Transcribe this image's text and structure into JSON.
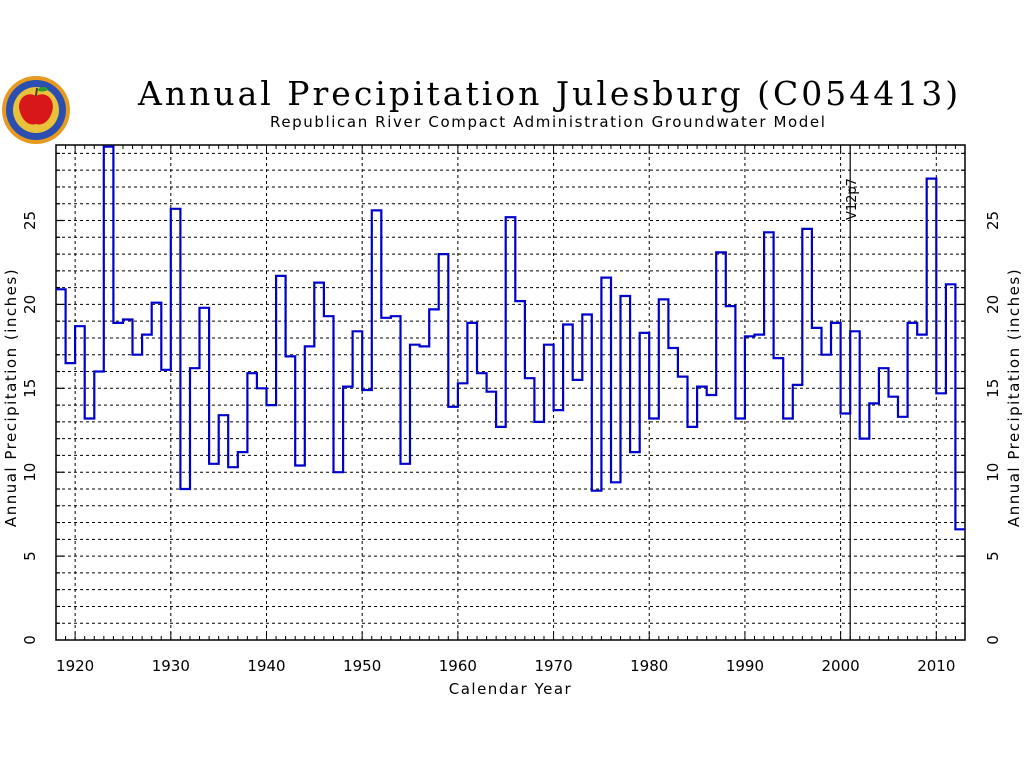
{
  "logo": {
    "icon": "agency-seal-apple-icon"
  },
  "chart_data": {
    "type": "line",
    "step": true,
    "title": "Annual Precipitation Julesburg (C054413)",
    "subtitle": "Republican River Compact Administration Groundwater Model",
    "xlabel": "Calendar Year",
    "ylabel": "Annual Precipitation (inches)",
    "ylabel_right": "Annual Precipitation (inches)",
    "xlim": [
      1918,
      2013
    ],
    "ylim": [
      0,
      29.5
    ],
    "xticks": [
      1920,
      1930,
      1940,
      1950,
      1960,
      1970,
      1980,
      1990,
      2000,
      2010
    ],
    "xtick_labels": [
      "1920",
      "1930",
      "1940",
      "1950",
      "1960",
      "1970",
      "1980",
      "1990",
      "2000",
      "2010"
    ],
    "yticks": [
      0,
      5,
      10,
      15,
      20,
      25
    ],
    "ytick_labels": [
      "0",
      "5",
      "10",
      "15",
      "20",
      "25"
    ],
    "grid": true,
    "series_color": "#0000cc",
    "annotation": {
      "x": 2001,
      "label": "V12p7"
    },
    "series": [
      {
        "x": [
          1918,
          1919,
          1920,
          1921,
          1922,
          1923,
          1924,
          1925,
          1926,
          1927,
          1928,
          1929,
          1930,
          1931,
          1932,
          1933,
          1934,
          1935,
          1936,
          1937,
          1938,
          1939,
          1940,
          1941,
          1942,
          1943,
          1944,
          1945,
          1946,
          1947,
          1948,
          1949,
          1950,
          1951,
          1952,
          1953,
          1954,
          1955,
          1956,
          1957,
          1958,
          1959,
          1960,
          1961,
          1962,
          1963,
          1964,
          1965,
          1966,
          1967,
          1968,
          1969,
          1970,
          1971,
          1972,
          1973,
          1974,
          1975,
          1976,
          1977,
          1978,
          1979,
          1980,
          1981,
          1982,
          1983,
          1984,
          1985,
          1986,
          1987,
          1988,
          1989,
          1990,
          1991,
          1992,
          1993,
          1994,
          1995,
          1996,
          1997,
          1998,
          1999,
          2000,
          2001,
          2002,
          2003,
          2004,
          2005,
          2006,
          2007,
          2008,
          2009,
          2010,
          2011,
          2012
        ],
        "values": [
          20.9,
          16.5,
          18.7,
          13.2,
          16.0,
          29.4,
          18.9,
          19.1,
          17.0,
          18.2,
          20.1,
          16.1,
          25.7,
          9.0,
          16.2,
          19.8,
          10.5,
          13.4,
          10.3,
          11.2,
          15.9,
          15.0,
          14.0,
          21.7,
          16.9,
          10.4,
          17.5,
          21.3,
          19.3,
          10.0,
          15.1,
          18.4,
          14.9,
          25.6,
          19.2,
          19.3,
          10.5,
          17.6,
          17.5,
          19.7,
          23.0,
          13.9,
          15.3,
          18.9,
          15.9,
          14.8,
          12.7,
          25.2,
          20.2,
          15.6,
          13.0,
          17.6,
          13.7,
          18.8,
          15.5,
          19.4,
          8.9,
          21.6,
          9.4,
          20.5,
          11.2,
          18.3,
          13.2,
          20.3,
          17.4,
          15.7,
          12.7,
          15.1,
          14.6,
          23.1,
          19.9,
          13.2,
          18.1,
          18.2,
          24.3,
          16.8,
          13.2,
          15.2,
          24.5,
          18.6,
          17.0,
          18.9,
          13.5,
          18.4,
          12.0,
          14.1,
          16.2,
          14.5,
          13.3,
          18.9,
          18.2,
          27.5,
          14.7,
          21.2,
          6.6
        ]
      }
    ]
  }
}
